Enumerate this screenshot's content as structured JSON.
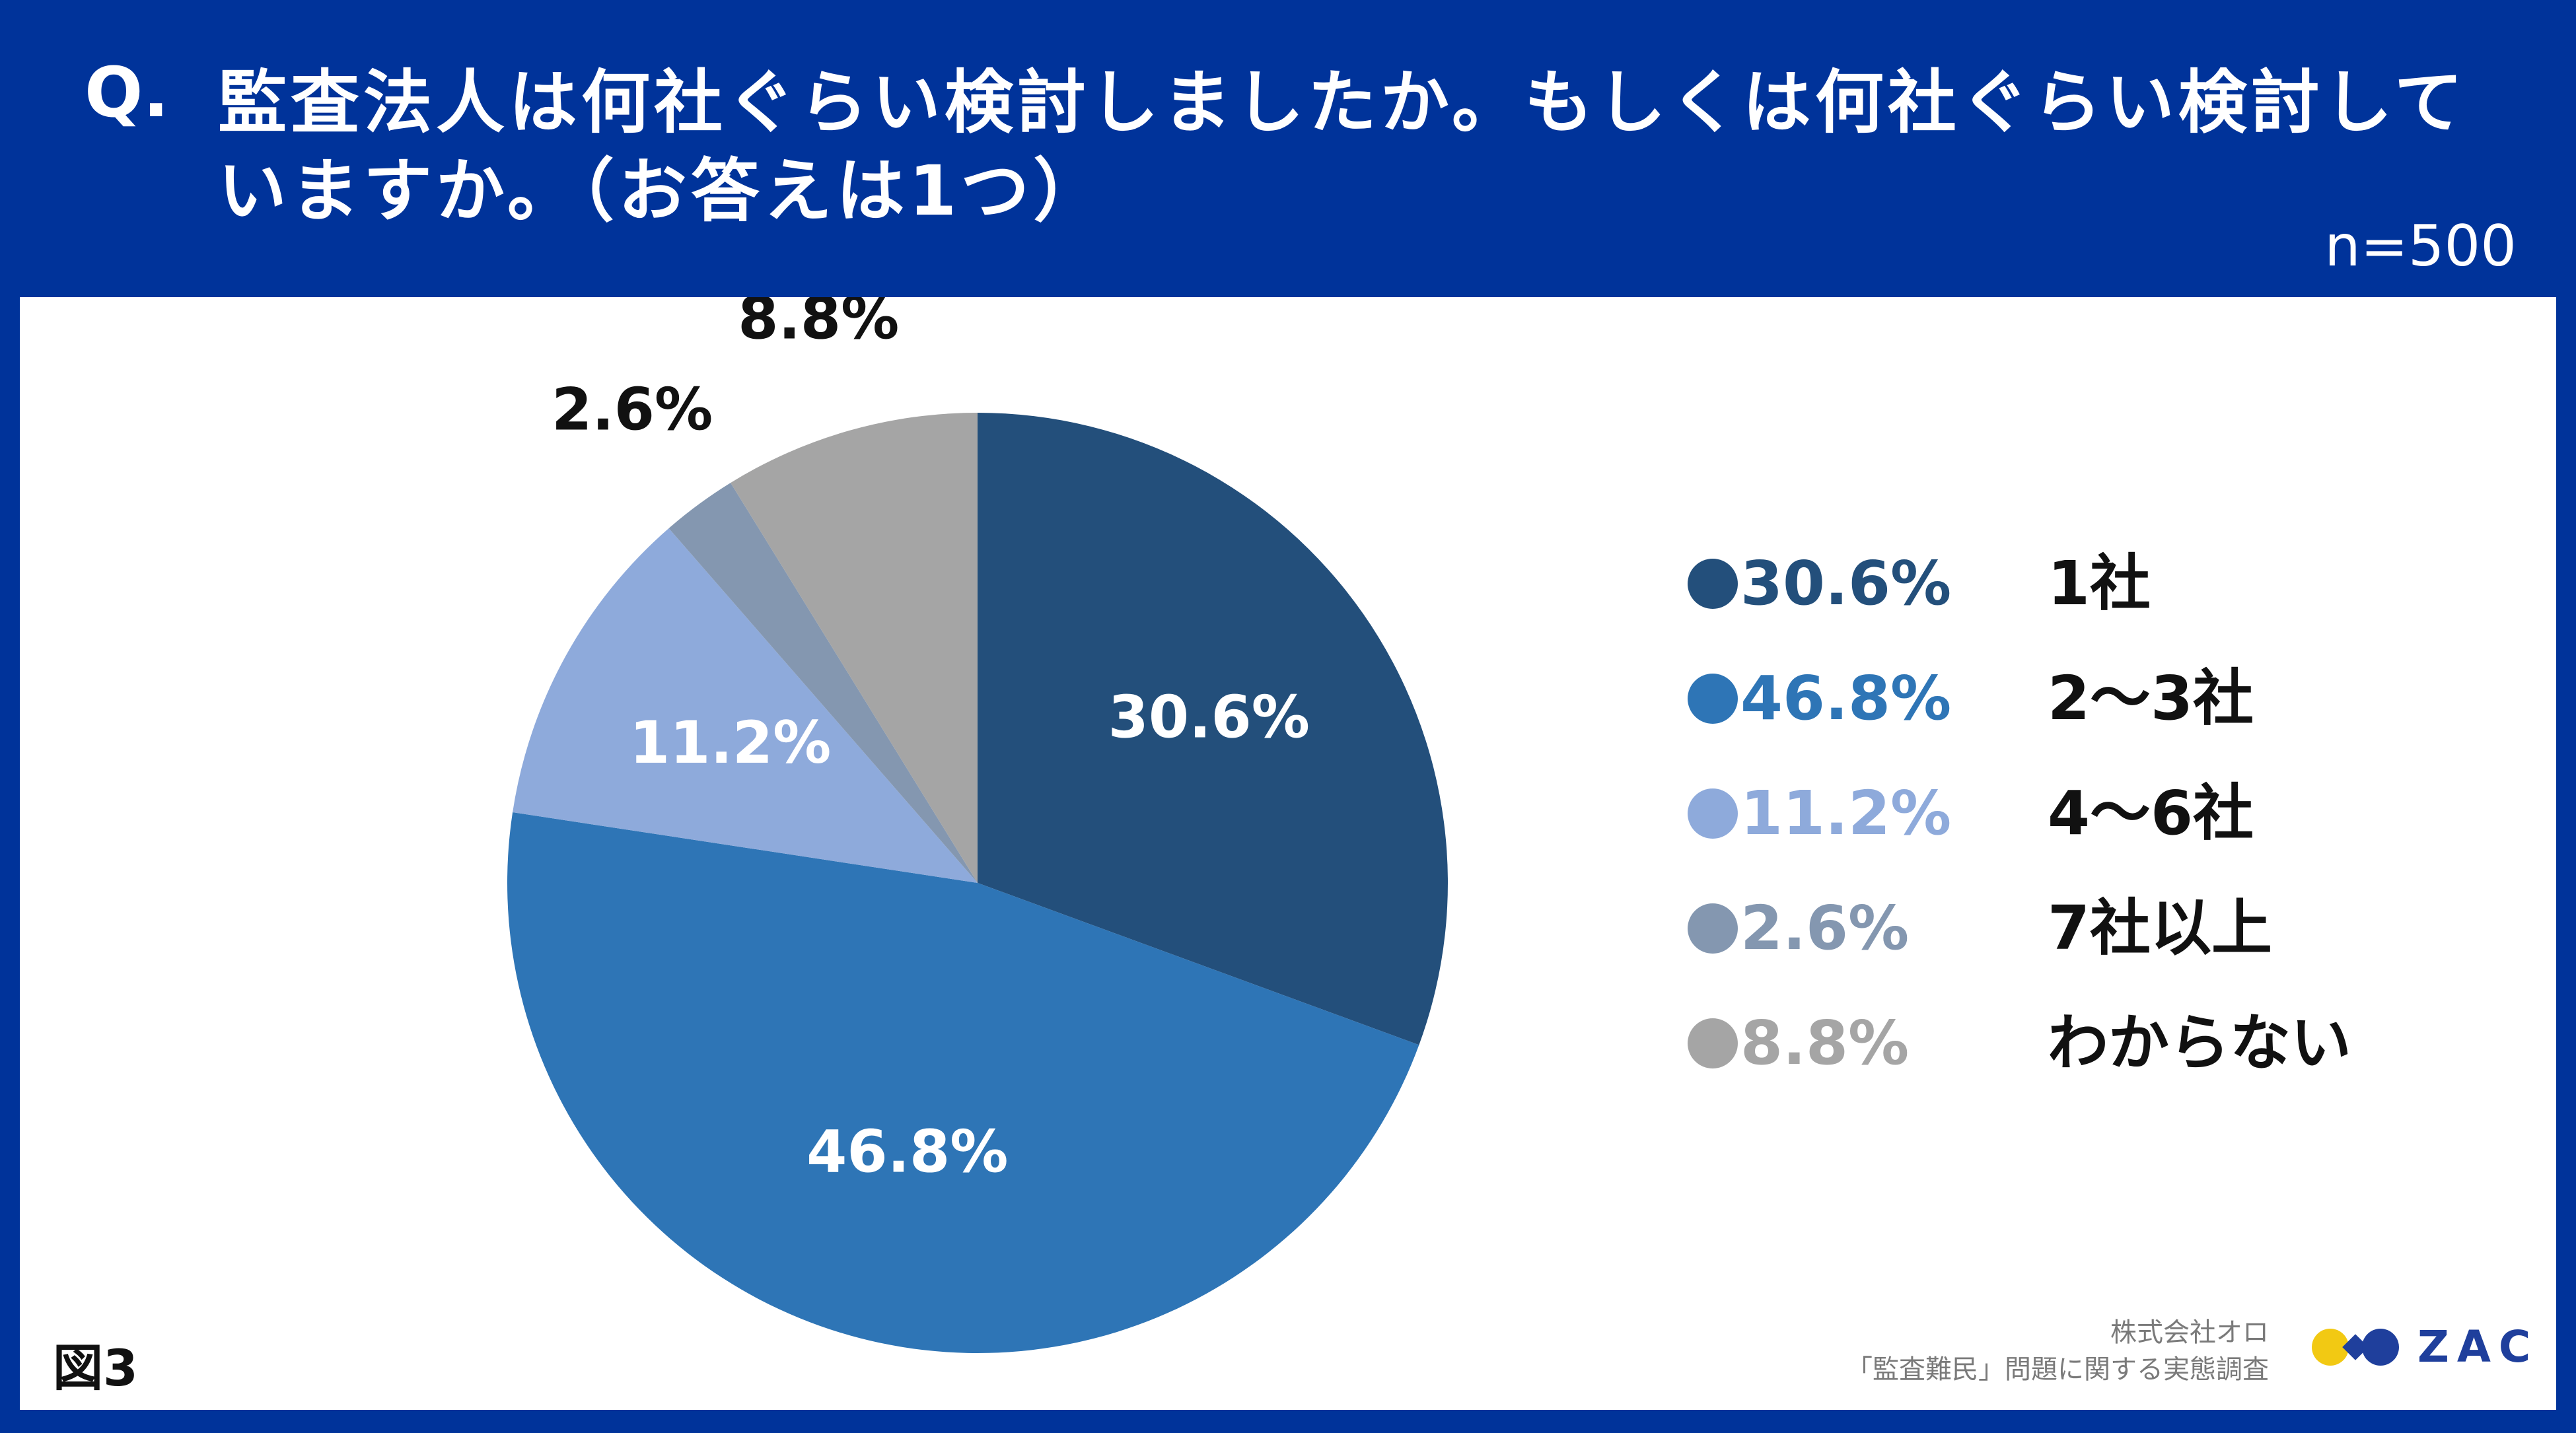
{
  "header": {
    "q_mark": "Q.",
    "question": "監査法人は何社ぐらい検討しましたか。もしくは何社ぐらい検討していますか。（お答えは1つ）",
    "sample_size": "n=500"
  },
  "chart_data": {
    "type": "pie",
    "title": "",
    "start_angle_deg": 0,
    "direction": "clockwise",
    "slices": [
      {
        "name": "1社",
        "value": 30.6,
        "label": "30.6%",
        "color": "#234f7b"
      },
      {
        "name": "2〜3社",
        "value": 46.8,
        "label": "46.8%",
        "color": "#2e75b6"
      },
      {
        "name": "4〜6社",
        "value": 11.2,
        "label": "11.2%",
        "color": "#8eaadb"
      },
      {
        "name": "7社以上",
        "value": 2.6,
        "label": "2.6%",
        "color": "#8497b0"
      },
      {
        "name": "わからない",
        "value": 8.8,
        "label": "8.8%",
        "color": "#a5a5a5"
      }
    ],
    "legend_placement": "right"
  },
  "footer": {
    "figure_no": "図3",
    "company": "株式会社オロ",
    "survey_name": "「監査難民」問題に関する実態調査",
    "logo_text": "ZAC"
  }
}
